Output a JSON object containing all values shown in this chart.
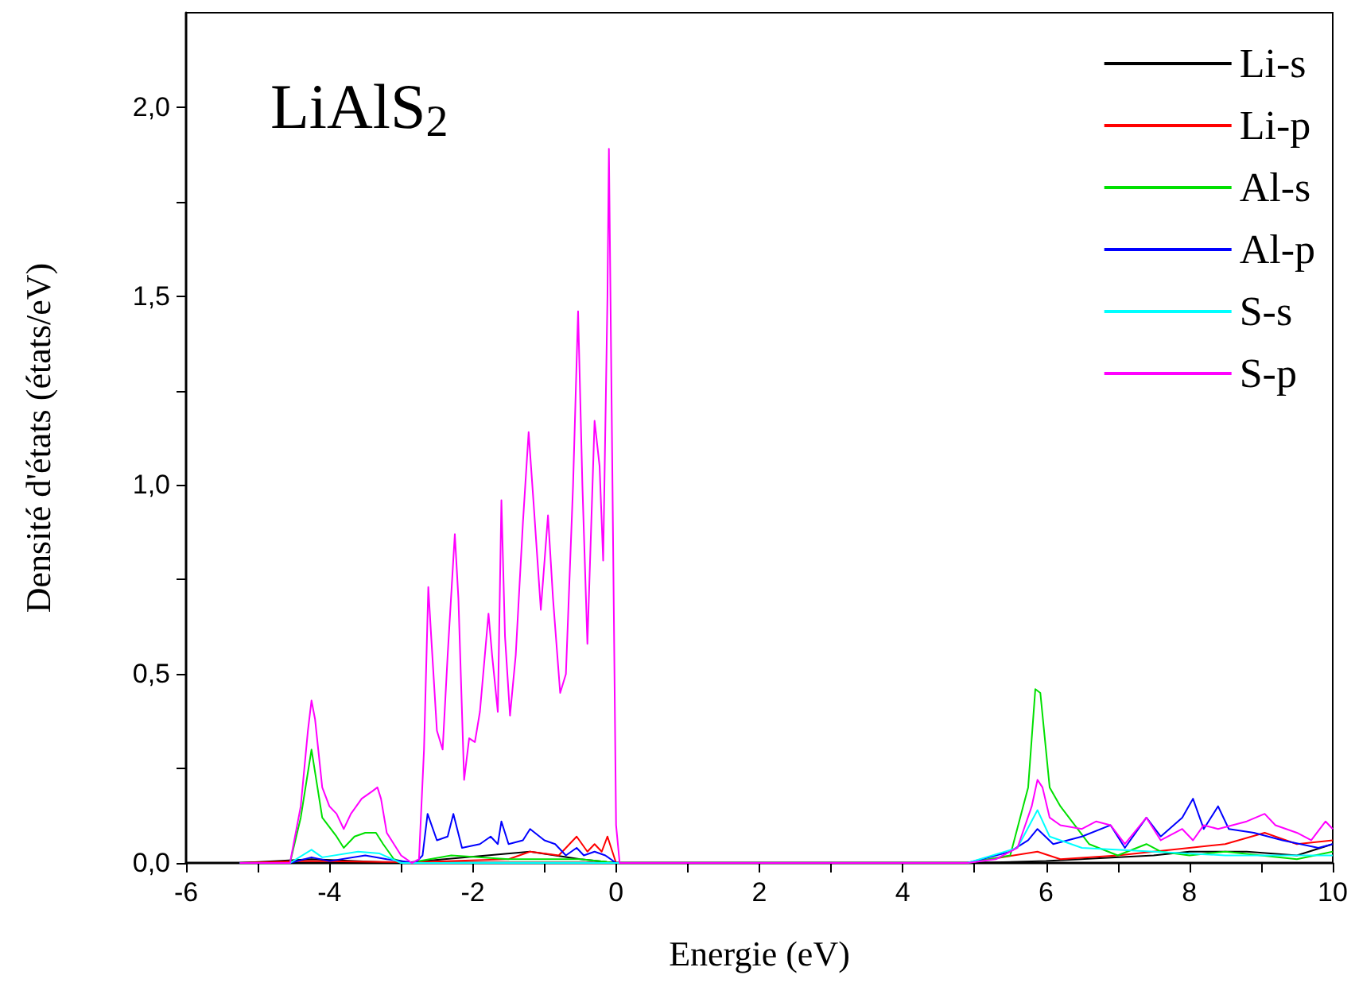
{
  "chart_data": {
    "type": "line",
    "title": "LiAlS$_{2}$",
    "xlabel": "Energie (eV)",
    "ylabel": "Densité d'états (états/eV)",
    "xlim": [
      -6,
      10
    ],
    "xticks": [
      -6,
      {
        "value": -5,
        "label": null
      },
      -4,
      {
        "value": -3,
        "label": null
      },
      -2,
      {
        "value": -1,
        "label": null
      },
      0,
      {
        "value": 1,
        "label": null
      },
      2,
      {
        "value": 3,
        "label": null
      },
      4,
      {
        "value": 5,
        "label": null
      },
      6,
      {
        "value": 7,
        "label": null
      },
      8,
      {
        "value": 9,
        "label": null
      },
      10
    ],
    "ylim": [
      0,
      2.25
    ],
    "yticks": [
      {
        "value": 0,
        "label": "0,0"
      },
      {
        "value": 0.25,
        "label": null
      },
      {
        "value": 0.5,
        "label": "0,5"
      },
      {
        "value": 0.75,
        "label": null
      },
      {
        "value": 1,
        "label": "1,0"
      },
      {
        "value": 1.25,
        "label": null
      },
      {
        "value": 1.5,
        "label": "1,5"
      },
      {
        "value": 1.75,
        "label": null
      },
      {
        "value": 2,
        "label": "2,0"
      }
    ],
    "grid": false,
    "legend": "top right",
    "marker": "none",
    "line_style": "solid",
    "series": [
      {
        "name": "Li-s",
        "color": "#000000",
        "x": [
          -5.25,
          -4.25,
          -3,
          -1.8,
          -1.2,
          -0.5,
          0,
          4.9,
          6,
          7.5,
          8,
          8.8,
          9.5,
          10
        ],
        "values": [
          0,
          0.01,
          0,
          0.02,
          0.03,
          0.01,
          0,
          0,
          0.005,
          0.02,
          0.03,
          0.03,
          0.02,
          0.05
        ]
      },
      {
        "name": "Li-p",
        "color": "#ff0000",
        "x": [
          -5.25,
          -4.3,
          -2.8,
          -1.5,
          -1.2,
          -0.8,
          -0.55,
          -0.4,
          -0.3,
          -0.2,
          -0.12,
          0,
          4.9,
          5.88,
          6.2,
          7,
          7.5,
          8,
          8.5,
          9.05,
          9.5,
          10
        ],
        "values": [
          0,
          0.005,
          0.002,
          0.01,
          0.03,
          0.02,
          0.07,
          0.03,
          0.05,
          0.03,
          0.07,
          0,
          0,
          0.03,
          0.01,
          0.02,
          0.03,
          0.04,
          0.05,
          0.08,
          0.05,
          0.06
        ]
      },
      {
        "name": "Al-s",
        "color": "#00e000",
        "x": [
          -5.25,
          -4.55,
          -4.4,
          -4.25,
          -4.1,
          -3.9,
          -3.8,
          -3.65,
          -3.5,
          -3.35,
          -3.25,
          -3.1,
          -2.9,
          -2.3,
          -1.5,
          -0.5,
          0,
          4.9,
          5.5,
          5.75,
          5.85,
          5.92,
          6.05,
          6.2,
          6.4,
          6.6,
          7,
          7.4,
          7.6,
          8,
          8.5,
          9,
          9.5,
          10
        ],
        "values": [
          0,
          0,
          0.12,
          0.3,
          0.12,
          0.07,
          0.04,
          0.07,
          0.08,
          0.08,
          0.05,
          0.01,
          0,
          0.02,
          0.01,
          0.01,
          0,
          0,
          0.02,
          0.2,
          0.46,
          0.45,
          0.2,
          0.15,
          0.1,
          0.05,
          0.02,
          0.05,
          0.03,
          0.02,
          0.03,
          0.02,
          0.01,
          0.03
        ]
      },
      {
        "name": "Al-p",
        "color": "#0000ff",
        "x": [
          -5.25,
          -4.55,
          -4.25,
          -4,
          -3.5,
          -3.2,
          -2.8,
          -2.7,
          -2.63,
          -2.5,
          -2.35,
          -2.27,
          -2.15,
          -1.9,
          -1.75,
          -1.65,
          -1.6,
          -1.5,
          -1.3,
          -1.2,
          -1,
          -0.85,
          -0.7,
          -0.55,
          -0.45,
          -0.3,
          -0.15,
          0,
          4.9,
          5.5,
          5.75,
          5.88,
          6.1,
          6.5,
          6.9,
          7.1,
          7.4,
          7.6,
          7.9,
          8.05,
          8.2,
          8.4,
          8.55,
          8.9,
          9.3,
          9.8,
          10
        ],
        "values": [
          0,
          0,
          0.015,
          0.005,
          0.02,
          0.01,
          0,
          0.02,
          0.13,
          0.06,
          0.07,
          0.13,
          0.04,
          0.05,
          0.07,
          0.05,
          0.11,
          0.05,
          0.06,
          0.09,
          0.06,
          0.05,
          0.02,
          0.04,
          0.02,
          0.03,
          0.02,
          0,
          0,
          0.03,
          0.06,
          0.09,
          0.05,
          0.07,
          0.1,
          0.04,
          0.12,
          0.07,
          0.12,
          0.17,
          0.09,
          0.15,
          0.09,
          0.08,
          0.06,
          0.04,
          0.05
        ]
      },
      {
        "name": "S-s",
        "color": "#00ffff",
        "x": [
          -5.25,
          -4.55,
          -4.25,
          -4.1,
          -3.6,
          -3.3,
          -3,
          0,
          4.9,
          5.6,
          5.88,
          6.05,
          6.5,
          7.5,
          8.5,
          9.5,
          10
        ],
        "values": [
          0,
          0,
          0.035,
          0.015,
          0.03,
          0.025,
          0,
          0,
          0,
          0.04,
          0.14,
          0.07,
          0.04,
          0.03,
          0.02,
          0.02,
          0.02
        ]
      },
      {
        "name": "S-p",
        "color": "#ff00ff",
        "x": [
          -5.25,
          -4.55,
          -4.4,
          -4.3,
          -4.25,
          -4.2,
          -4.1,
          -4,
          -3.9,
          -3.8,
          -3.7,
          -3.55,
          -3.4,
          -3.33,
          -3.28,
          -3.2,
          -3,
          -2.85,
          -2.75,
          -2.68,
          -2.62,
          -2.58,
          -2.5,
          -2.42,
          -2.35,
          -2.25,
          -2.2,
          -2.12,
          -2.05,
          -1.97,
          -1.9,
          -1.78,
          -1.73,
          -1.65,
          -1.6,
          -1.55,
          -1.48,
          -1.4,
          -1.3,
          -1.22,
          -1.15,
          -1.05,
          -0.95,
          -0.88,
          -0.78,
          -0.7,
          -0.6,
          -0.53,
          -0.47,
          -0.4,
          -0.3,
          -0.23,
          -0.18,
          -0.12,
          -0.1,
          -0.05,
          0,
          0.05,
          4.9,
          5.3,
          5.6,
          5.8,
          5.88,
          5.95,
          6.05,
          6.2,
          6.5,
          6.7,
          6.9,
          7.1,
          7.4,
          7.6,
          7.9,
          8.05,
          8.2,
          8.4,
          8.6,
          8.8,
          9.05,
          9.2,
          9.5,
          9.7,
          9.9,
          10
        ],
        "values": [
          0,
          0,
          0.15,
          0.35,
          0.43,
          0.38,
          0.2,
          0.15,
          0.13,
          0.09,
          0.13,
          0.17,
          0.19,
          0.2,
          0.17,
          0.08,
          0.02,
          0,
          0.01,
          0.3,
          0.73,
          0.6,
          0.35,
          0.3,
          0.55,
          0.87,
          0.7,
          0.22,
          0.33,
          0.32,
          0.4,
          0.66,
          0.55,
          0.4,
          0.96,
          0.6,
          0.39,
          0.55,
          0.9,
          1.14,
          0.95,
          0.67,
          0.92,
          0.7,
          0.45,
          0.5,
          1,
          1.46,
          1,
          0.58,
          1.17,
          1.05,
          0.8,
          1.5,
          1.89,
          1,
          0.1,
          0,
          0,
          0.01,
          0.04,
          0.15,
          0.22,
          0.2,
          0.12,
          0.1,
          0.09,
          0.11,
          0.1,
          0.05,
          0.12,
          0.06,
          0.09,
          0.06,
          0.1,
          0.09,
          0.1,
          0.11,
          0.13,
          0.1,
          0.08,
          0.06,
          0.11,
          0.09
        ]
      }
    ]
  }
}
